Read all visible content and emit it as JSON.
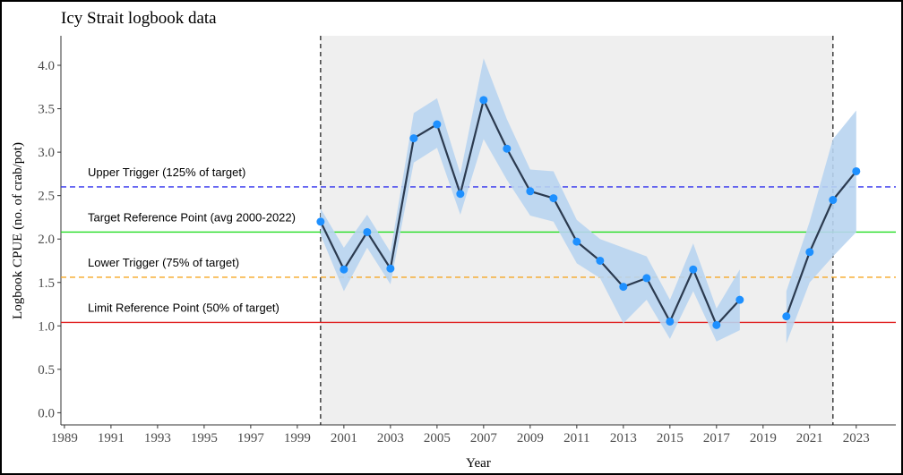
{
  "chart_data": {
    "type": "line",
    "title": "Icy Strait logbook data",
    "x_label": "Year",
    "y_label": "Logbook CPUE (no. of crab/pot)",
    "x": [
      2000,
      2001,
      2002,
      2003,
      2004,
      2005,
      2006,
      2007,
      2008,
      2009,
      2010,
      2011,
      2012,
      2013,
      2014,
      2015,
      2016,
      2017,
      2018,
      2019,
      2020,
      2021,
      2022,
      2023
    ],
    "series": [
      {
        "color": "#1e90ff",
        "line_color": "#2b3a4f",
        "band_color": "#b8d4f0",
        "values": [
          2.2,
          1.65,
          2.08,
          1.66,
          3.16,
          3.32,
          2.52,
          3.6,
          3.04,
          2.55,
          2.47,
          1.97,
          1.75,
          1.45,
          1.55,
          1.05,
          1.65,
          1.01,
          1.3,
          null,
          1.11,
          1.85,
          2.45,
          2.78
        ],
        "lower": [
          2.05,
          1.4,
          1.9,
          1.48,
          2.88,
          3.05,
          2.28,
          3.15,
          2.68,
          2.27,
          2.2,
          1.72,
          1.55,
          1.03,
          1.3,
          0.85,
          1.4,
          0.82,
          0.95,
          null,
          0.8,
          1.5,
          1.8,
          2.08
        ],
        "upper": [
          2.35,
          1.9,
          2.28,
          1.85,
          3.45,
          3.62,
          2.75,
          4.08,
          3.38,
          2.8,
          2.78,
          2.22,
          2.0,
          1.9,
          1.8,
          1.3,
          1.95,
          1.2,
          1.65,
          null,
          1.4,
          2.2,
          3.15,
          3.48
        ]
      }
    ],
    "reference_lines": [
      {
        "label": "Upper Trigger (125% of target)",
        "value": 2.6,
        "color": "#3333ee",
        "dashed": true
      },
      {
        "label": "Target Reference Point (avg 2000-2022)",
        "value": 2.08,
        "color": "#22dd22",
        "dashed": false
      },
      {
        "label": "Lower Trigger (75% of target)",
        "value": 1.56,
        "color": "#f5a623",
        "dashed": true
      },
      {
        "label": "Limit Reference Point (50% of target)",
        "value": 1.04,
        "color": "#e02020",
        "dashed": false
      }
    ],
    "shaded_span": [
      2000,
      2022
    ],
    "vlines": [
      2000,
      2022
    ],
    "xlim": [
      1988.85,
      2024.7
    ],
    "ylim": [
      -0.14,
      4.34
    ],
    "xticks": [
      1989,
      1991,
      1993,
      1995,
      1997,
      1999,
      2001,
      2003,
      2005,
      2007,
      2009,
      2011,
      2013,
      2015,
      2017,
      2019,
      2021,
      2023
    ],
    "yticks": [
      {
        "value": 0,
        "label": "0.0"
      },
      {
        "value": 0.5,
        "label": "0.5"
      },
      {
        "value": 1,
        "label": "1.0"
      },
      {
        "value": 1.5,
        "label": "1.5"
      },
      {
        "value": 2,
        "label": "2.0"
      },
      {
        "value": 2.5,
        "label": "2.5"
      },
      {
        "value": 3,
        "label": "3.0"
      },
      {
        "value": 3.5,
        "label": "3.5"
      },
      {
        "value": 4,
        "label": "4.0"
      }
    ]
  }
}
